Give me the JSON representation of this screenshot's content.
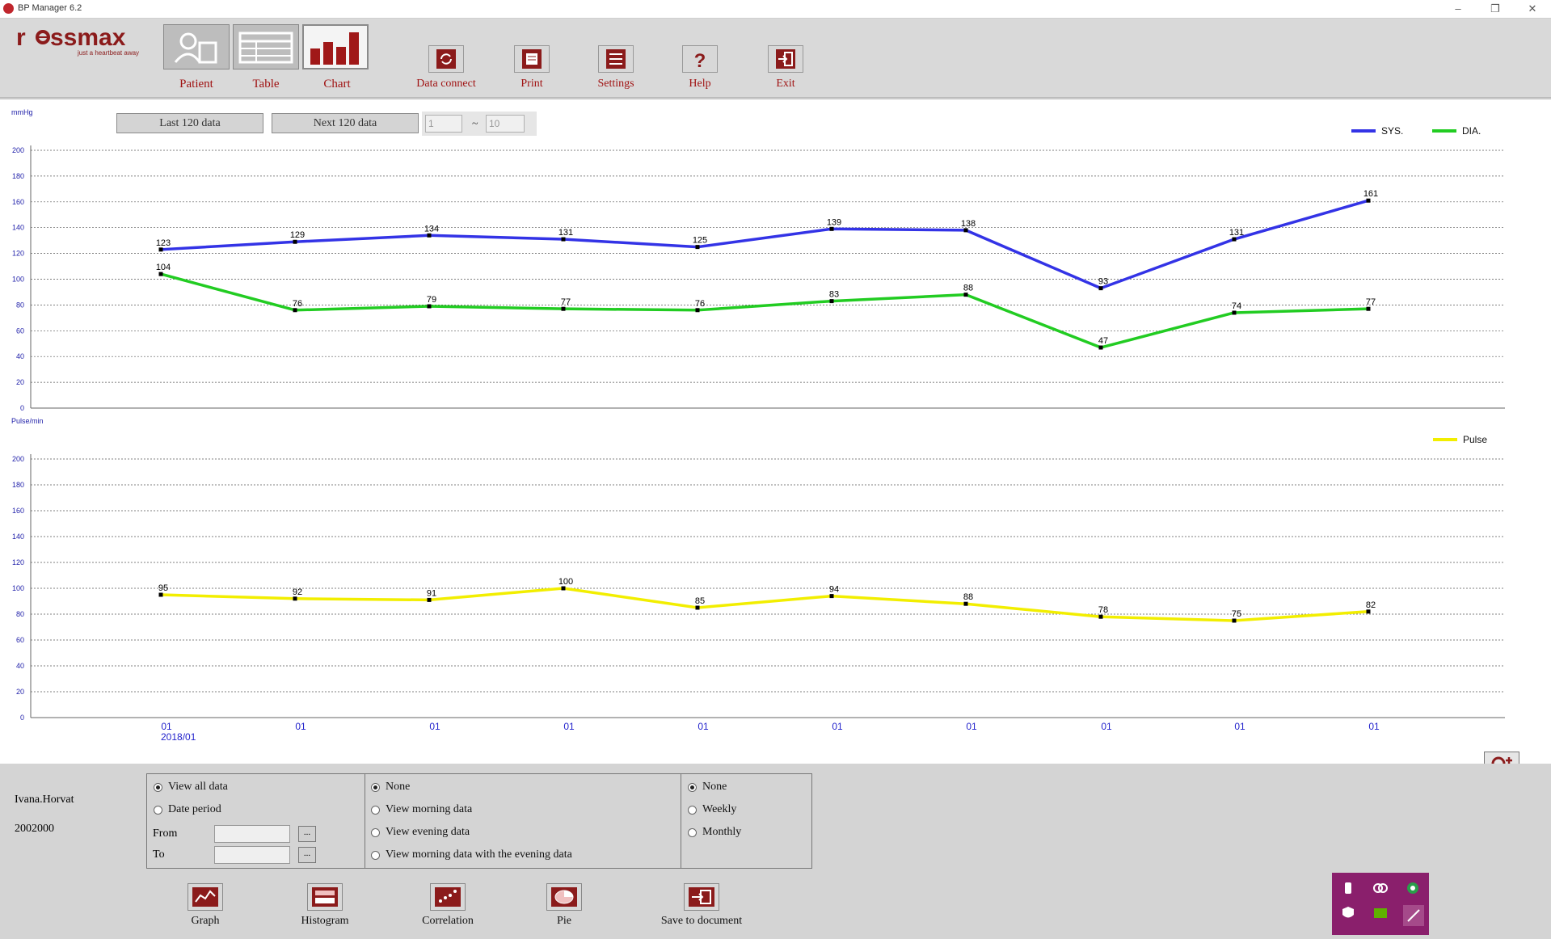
{
  "window": {
    "title": "BP Manager 6.2",
    "minimize": "–",
    "restore": "❐",
    "close": "✕"
  },
  "logo": {
    "brand": "rossmax",
    "tagline": "just a heartbeat away"
  },
  "nav_tabs": [
    {
      "label": "Patient",
      "icon": "patient-card-icon"
    },
    {
      "label": "Table",
      "icon": "table-icon"
    },
    {
      "label": "Chart",
      "icon": "bar-chart-icon",
      "active": true
    }
  ],
  "tools": [
    {
      "label": "Data connect",
      "icon": "sync-icon"
    },
    {
      "label": "Print",
      "icon": "printer-icon"
    },
    {
      "label": "Settings",
      "icon": "list-settings-icon"
    },
    {
      "label": "Help",
      "icon": "question-icon"
    },
    {
      "label": "Exit",
      "icon": "exit-door-icon"
    }
  ],
  "paging": {
    "last_label": "Last 120 data",
    "next_label": "Next 120 data",
    "from_value": "1",
    "tilde": "~",
    "to_value": "10"
  },
  "chart_data": [
    {
      "type": "line",
      "ylabel": "mmHg",
      "ylim": [
        0,
        200
      ],
      "yticks": [
        0,
        20,
        40,
        60,
        80,
        100,
        120,
        140,
        160,
        180,
        200
      ],
      "grid": true,
      "legend_placement": "top-right",
      "categories": [
        "01",
        "01",
        "01",
        "01",
        "01",
        "01",
        "01",
        "01",
        "01",
        "01"
      ],
      "first_category_sublabel": "2018/01",
      "series": [
        {
          "name": "SYS.",
          "color": "#3333e6",
          "values": [
            123,
            129,
            134,
            131,
            125,
            139,
            138,
            93,
            131,
            161
          ]
        },
        {
          "name": "DIA.",
          "color": "#22cc22",
          "values": [
            104,
            76,
            79,
            77,
            76,
            83,
            88,
            47,
            74,
            77
          ]
        }
      ]
    },
    {
      "type": "line",
      "ylabel": "Pulse/min",
      "ylim": [
        0,
        200
      ],
      "yticks": [
        0,
        20,
        40,
        60,
        80,
        100,
        120,
        140,
        160,
        180,
        200
      ],
      "grid": true,
      "legend_placement": "top-right",
      "categories": [
        "01",
        "01",
        "01",
        "01",
        "01",
        "01",
        "01",
        "01",
        "01",
        "01"
      ],
      "first_category_sublabel": "2018/01",
      "series": [
        {
          "name": "Pulse",
          "color": "#f2ee00",
          "values": [
            95,
            92,
            91,
            100,
            85,
            94,
            88,
            78,
            75,
            82
          ]
        }
      ]
    }
  ],
  "zoom_icon": "zoom-in-icon",
  "patient": {
    "name": "Ivana.Horvat",
    "id": "2002000"
  },
  "options": {
    "period": {
      "view_all": "View all data",
      "date_period": "Date period",
      "from_label": "From",
      "to_label": "To",
      "browse": "..."
    },
    "time_filter": [
      "None",
      "View morning data",
      "View evening data",
      "View morning data with the evening data"
    ],
    "grouping": [
      "None",
      "Weekly",
      "Monthly"
    ]
  },
  "bottom_tools": [
    {
      "label": "Graph",
      "icon": "line-graph-icon"
    },
    {
      "label": "Histogram",
      "icon": "histogram-icon"
    },
    {
      "label": "Correlation",
      "icon": "scatter-icon"
    },
    {
      "label": "Pie",
      "icon": "pie-icon"
    },
    {
      "label": "Save to document",
      "icon": "save-document-icon"
    }
  ],
  "tray_icons": [
    "usb-icon",
    "link-icon",
    "chrome-icon",
    "shield-icon",
    "nvidia-icon",
    "pen-icon"
  ]
}
